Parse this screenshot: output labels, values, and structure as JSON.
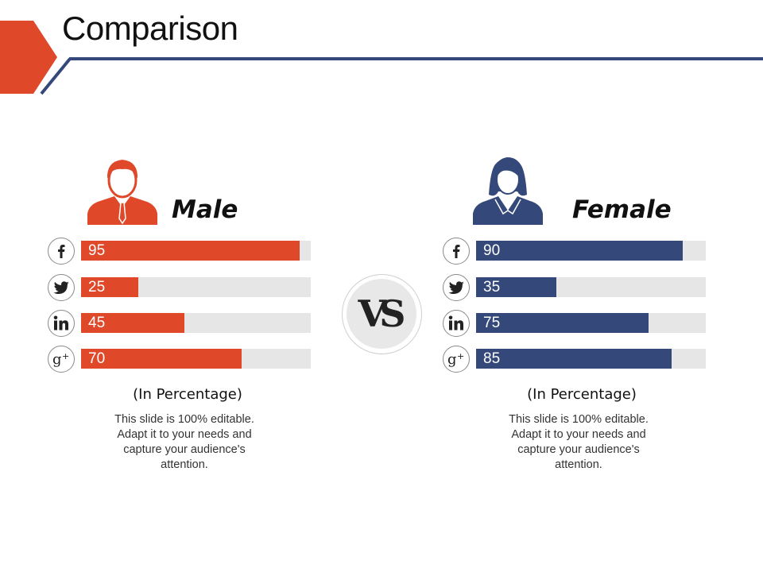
{
  "title": "Comparison",
  "accent_colors": {
    "orange": "#e0482a",
    "navy": "#34497a",
    "track": "#e6e6e6"
  },
  "vs_label": "VS",
  "chart_data": [
    {
      "type": "bar",
      "orientation": "horizontal",
      "title": "Male",
      "categories": [
        "Facebook",
        "Twitter",
        "LinkedIn",
        "Google+"
      ],
      "values": [
        95,
        25,
        45,
        70
      ],
      "xlim": [
        0,
        100
      ],
      "color": "#e0482a",
      "caption": "(In Percentage)",
      "description": "This slide is 100% editable. Adapt it to your needs and capture your audience's attention."
    },
    {
      "type": "bar",
      "orientation": "horizontal",
      "title": "Female",
      "categories": [
        "Facebook",
        "Twitter",
        "LinkedIn",
        "Google+"
      ],
      "values": [
        90,
        35,
        75,
        85
      ],
      "xlim": [
        0,
        100
      ],
      "color": "#34497a",
      "caption": "(In Percentage)",
      "description": "This slide is 100% editable. Adapt it to your needs and capture your audience's attention."
    }
  ],
  "social_icons": [
    "facebook-icon",
    "twitter-icon",
    "linkedin-icon",
    "google-plus-icon"
  ]
}
